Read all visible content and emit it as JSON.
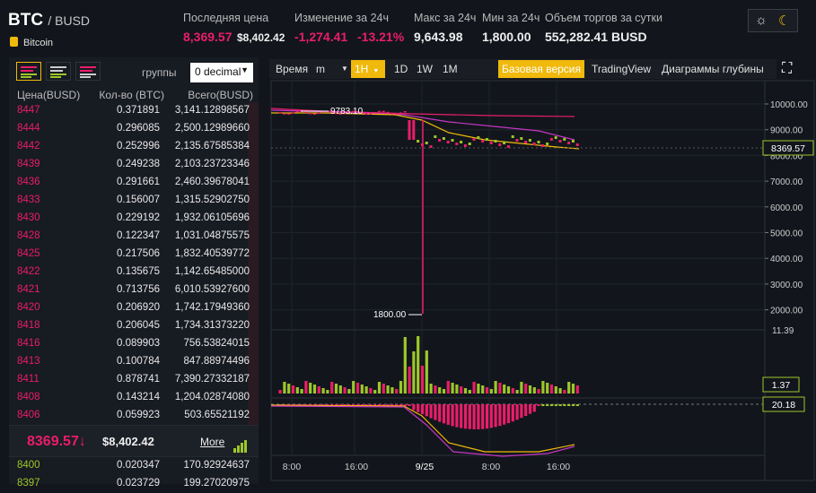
{
  "header": {
    "base": "BTC",
    "quote": "/ BUSD",
    "coin": "Bitcoin",
    "last_label": "Последняя цена",
    "last": "8,369.57",
    "last_usd": "$8,402.42",
    "change_label": "Изменение за 24ч",
    "change": "-1,274.41",
    "change_pct": "-13.21%",
    "high_label": "Макс за 24ч",
    "high": "9,643.98",
    "low_label": "Мин за 24ч",
    "low": "1,800.00",
    "vol_label": "Объем торгов за сутки",
    "vol": "552,282.41 BUSD"
  },
  "theme": {
    "light_icon": "☼",
    "dark_icon": "☾"
  },
  "orderbook": {
    "groups_label": "группы",
    "decimal": "0 decimal",
    "col_price": "Цена(BUSD)",
    "col_amount": "Кол-во (BTC)",
    "col_total": "Всего(BUSD)",
    "asks": [
      [
        "8447",
        "0.371891",
        "3,141.12898567"
      ],
      [
        "8444",
        "0.296085",
        "2,500.12989660"
      ],
      [
        "8442",
        "0.252996",
        "2,135.67585384"
      ],
      [
        "8439",
        "0.249238",
        "2,103.23723346"
      ],
      [
        "8436",
        "0.291661",
        "2,460.39678041"
      ],
      [
        "8433",
        "0.156007",
        "1,315.52902750"
      ],
      [
        "8430",
        "0.229192",
        "1,932.06105696"
      ],
      [
        "8428",
        "0.122347",
        "1,031.04875575"
      ],
      [
        "8425",
        "0.217506",
        "1,832.40539772"
      ],
      [
        "8422",
        "0.135675",
        "1,142.65485000"
      ],
      [
        "8421",
        "0.713756",
        "6,010.53927600"
      ],
      [
        "8420",
        "0.206920",
        "1,742.17949360"
      ],
      [
        "8418",
        "0.206045",
        "1,734.31373220"
      ],
      [
        "8416",
        "0.089903",
        "756.53824015"
      ],
      [
        "8413",
        "0.100784",
        "847.88974496"
      ],
      [
        "8411",
        "0.878741",
        "7,390.27332187"
      ],
      [
        "8408",
        "0.143214",
        "1,204.02874080"
      ],
      [
        "8406",
        "0.059923",
        "503.65521192"
      ]
    ],
    "mid_price": "8369.57",
    "mid_arrow": "↓",
    "mid_usd": "$8,402.42",
    "more": "More",
    "bids": [
      [
        "8400",
        "0.020347",
        "170.92924637"
      ],
      [
        "8397",
        "0.023729",
        "199.27020975"
      ]
    ]
  },
  "toolbar": {
    "time": "Время",
    "m": "m",
    "h1": "1H",
    "d1": "1D",
    "w1": "1W",
    "mo1": "1M",
    "basic": "Базовая версия",
    "tv": "TradingView",
    "depth": "Диаграммы глубины",
    "expand": "⛶"
  },
  "chart_data": {
    "type": "candlestick",
    "y_ticks": [
      "10000.00",
      "9000.00",
      "8000.00",
      "7000.00",
      "6000.00",
      "5000.00",
      "4000.00",
      "3000.00",
      "2000.00"
    ],
    "x_ticks": [
      "8:00",
      "16:00",
      "9/25",
      "8:00",
      "16:00"
    ],
    "high_label": "9783.10",
    "low_label": "1800.00",
    "last_label": "8369.57",
    "vol_max_label": "11.39",
    "vol_last_label": "1.37",
    "macd_label": "20.18",
    "ylim": [
      1600,
      10400
    ]
  }
}
